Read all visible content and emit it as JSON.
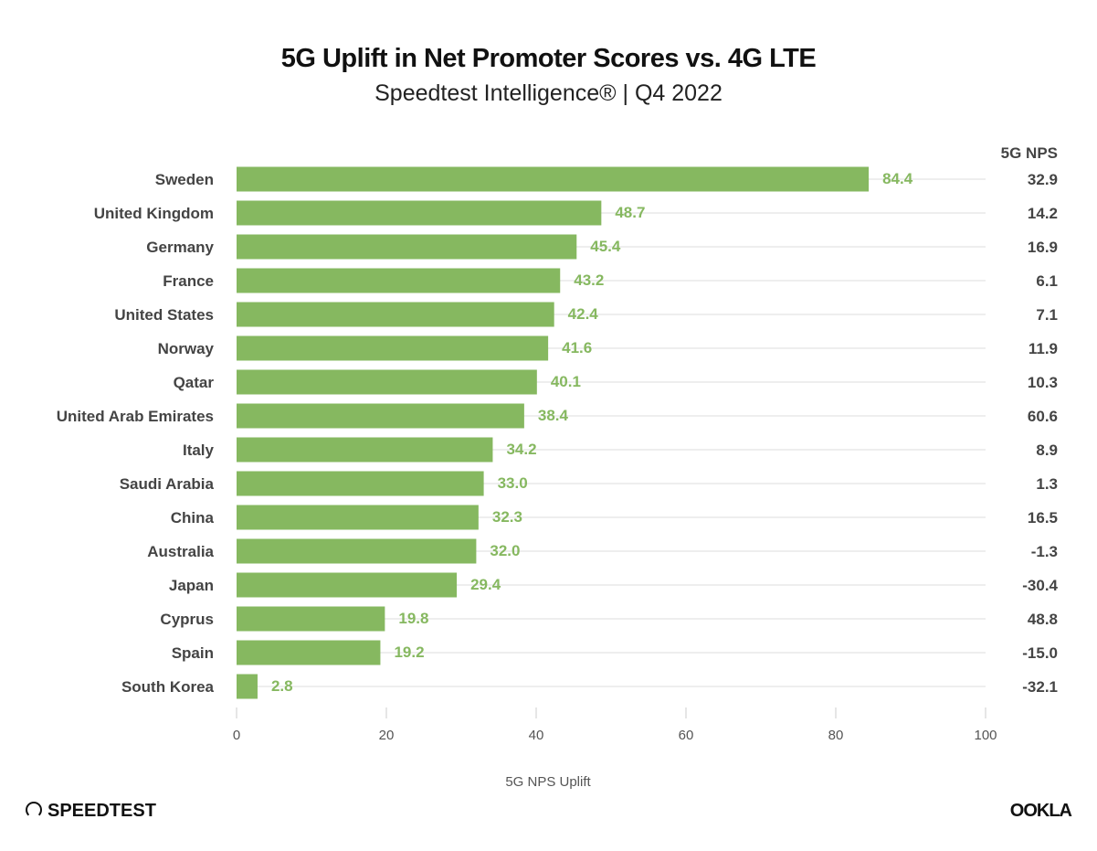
{
  "chart_data": {
    "type": "bar",
    "orientation": "horizontal",
    "title": "5G Uplift in Net Promoter Scores vs. 4G LTE",
    "subtitle": "Speedtest Intelligence® | Q4 2022",
    "xlabel": "5G NPS Uplift",
    "xlim": [
      0,
      100
    ],
    "xticks": [
      0,
      20,
      40,
      60,
      80,
      100
    ],
    "grid": true,
    "bar_color": "#86b860",
    "categories": [
      "Sweden",
      "United Kingdom",
      "Germany",
      "France",
      "United States",
      "Norway",
      "Qatar",
      "United Arab Emirates",
      "Italy",
      "Saudi Arabia",
      "China",
      "Australia",
      "Japan",
      "Cyprus",
      "Spain",
      "South Korea"
    ],
    "values": [
      84.4,
      48.7,
      45.4,
      43.2,
      42.4,
      41.6,
      40.1,
      38.4,
      34.2,
      33.0,
      32.3,
      32.0,
      29.4,
      19.8,
      19.2,
      2.8
    ],
    "value_labels": [
      "84.4",
      "48.7",
      "45.4",
      "43.2",
      "42.4",
      "41.6",
      "40.1",
      "38.4",
      "34.2",
      "33.0",
      "32.3",
      "32.0",
      "29.4",
      "19.8",
      "19.2",
      "2.8"
    ],
    "side_column": {
      "header": "5G NPS",
      "values": [
        "32.9",
        "14.2",
        "16.9",
        "6.1",
        "7.1",
        "11.9",
        "10.3",
        "60.6",
        "8.9",
        "1.3",
        "16.5",
        "-1.3",
        "-30.4",
        "48.8",
        "-15.0",
        "-32.1"
      ]
    }
  },
  "branding": {
    "left_logo": "SPEEDTEST",
    "right_logo": "OOKLA"
  }
}
